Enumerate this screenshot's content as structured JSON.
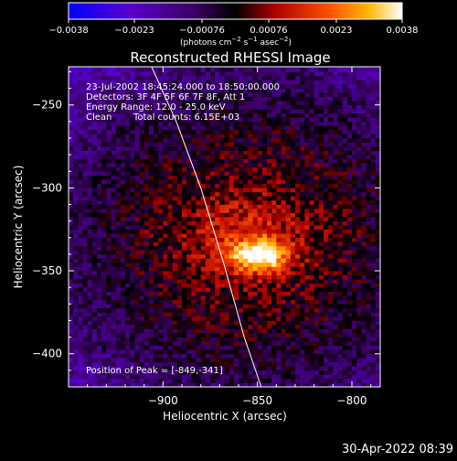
{
  "chart_data": {
    "type": "heatmap",
    "title": "Reconstructed RHESSI Image",
    "xlabel": "Heliocentric X (arcsec)",
    "ylabel": "Heliocentric Y (arcsec)",
    "xlim": [
      -950,
      -785
    ],
    "ylim": [
      -420,
      -227
    ],
    "xticks": [
      -900,
      -850,
      -800
    ],
    "xtick_labels": [
      "−900",
      "−850",
      "−800"
    ],
    "yticks": [
      -250,
      -300,
      -350,
      -400
    ],
    "ytick_labels": [
      "−250",
      "−300",
      "−350",
      "−400"
    ],
    "colorbar": {
      "range": [
        -0.0038,
        0.0038
      ],
      "ticks": [
        -0.0038,
        -0.0023,
        -0.00076,
        0.00076,
        0.0023,
        0.0038
      ],
      "tick_labels": [
        "−0.0038",
        "−0.0023",
        "−0.00076",
        "0.00076",
        "0.0023",
        "0.0038"
      ],
      "units_html": "(photons cm<tspan baseline-shift=\"super\" font-size=\"7\">−2</tspan> s<tspan baseline-shift=\"super\" font-size=\"7\">−1</tspan> asec<tspan baseline-shift=\"super\" font-size=\"7\">−2</tspan>)",
      "colors": [
        "#0000ff",
        "#7a00c8",
        "#1a0000",
        "#ff0000",
        "#ff9900",
        "#ffffff"
      ]
    },
    "peak": {
      "x": -849,
      "y": -341,
      "value": 0.0038
    },
    "limb_curve": [
      [
        -906,
        -227
      ],
      [
        -893,
        -260
      ],
      [
        -880,
        -300
      ],
      [
        -868,
        -345
      ],
      [
        -857,
        -390
      ],
      [
        -848,
        -420
      ]
    ],
    "annotations": [
      "23-Jul-2002 18:45:24.000 to 18:50:00.000",
      "Detectors: 3F 4F 5F 6F 7F 8F, Att 1",
      "Energy Range: 12.0 - 25.0 keV",
      "Clean",
      "Total counts: 6.15E+03",
      "Position of Peak = [-849,-341]"
    ]
  },
  "footer": {
    "timestamp": "30-Apr-2022 08:39"
  }
}
